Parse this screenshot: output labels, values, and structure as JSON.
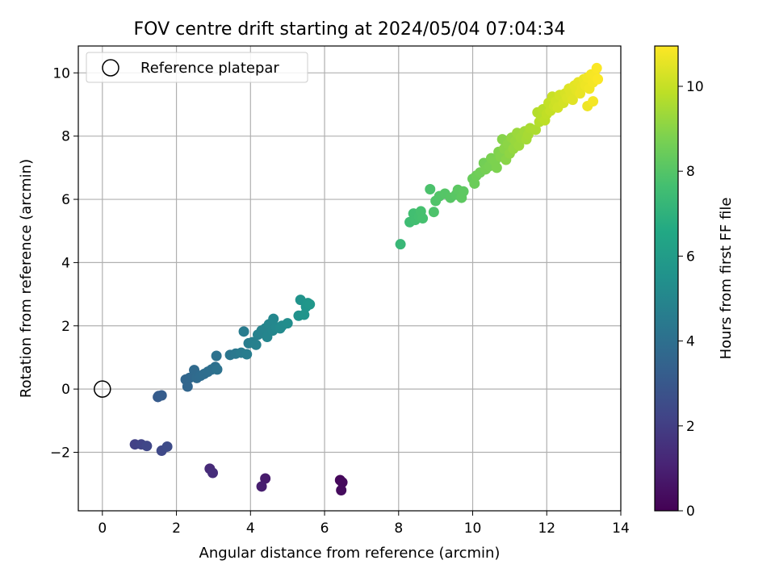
{
  "chart_data": {
    "type": "scatter",
    "title": "FOV centre drift starting at 2024/05/04 07:04:34",
    "xlabel": "Angular distance from reference (arcmin)",
    "ylabel": "Rotation from reference (arcmin)",
    "xlim": [
      -0.65,
      14.0
    ],
    "ylim": [
      -3.85,
      10.85
    ],
    "xticks": [
      0,
      2,
      4,
      6,
      8,
      10,
      12,
      14
    ],
    "yticks": [
      -2,
      0,
      2,
      4,
      6,
      8,
      10
    ],
    "grid": true,
    "legend": {
      "position": "top-left",
      "entries": [
        "Reference platepar"
      ]
    },
    "reference_point": {
      "x": 0,
      "y": 0
    },
    "colorbar": {
      "label": "Hours from first FF file",
      "colormap": "viridis",
      "range": [
        0,
        10.95
      ],
      "ticks": [
        0,
        2,
        4,
        6,
        8,
        10
      ]
    },
    "points": [
      {
        "x": 6.42,
        "y": -2.88,
        "c": 0.2
      },
      {
        "x": 6.48,
        "y": -2.95,
        "c": 0.25
      },
      {
        "x": 6.45,
        "y": -3.2,
        "c": 0.3
      },
      {
        "x": 4.4,
        "y": -2.83,
        "c": 0.8
      },
      {
        "x": 4.3,
        "y": -3.08,
        "c": 0.9
      },
      {
        "x": 2.9,
        "y": -2.52,
        "c": 1.3
      },
      {
        "x": 2.98,
        "y": -2.65,
        "c": 1.4
      },
      {
        "x": 0.88,
        "y": -1.75,
        "c": 2.1
      },
      {
        "x": 1.05,
        "y": -1.75,
        "c": 2.2
      },
      {
        "x": 1.2,
        "y": -1.8,
        "c": 2.3
      },
      {
        "x": 1.6,
        "y": -1.95,
        "c": 2.4
      },
      {
        "x": 1.75,
        "y": -1.82,
        "c": 2.5
      },
      {
        "x": 1.5,
        "y": -0.25,
        "c": 3.1
      },
      {
        "x": 1.52,
        "y": -0.22,
        "c": 3.15
      },
      {
        "x": 1.6,
        "y": -0.2,
        "c": 3.2
      },
      {
        "x": 2.25,
        "y": 0.3,
        "c": 3.6
      },
      {
        "x": 2.3,
        "y": 0.08,
        "c": 3.6
      },
      {
        "x": 2.35,
        "y": 0.35,
        "c": 3.65
      },
      {
        "x": 2.45,
        "y": 0.4,
        "c": 3.7
      },
      {
        "x": 2.48,
        "y": 0.6,
        "c": 3.75
      },
      {
        "x": 2.55,
        "y": 0.35,
        "c": 3.8
      },
      {
        "x": 2.65,
        "y": 0.42,
        "c": 3.85
      },
      {
        "x": 2.75,
        "y": 0.48,
        "c": 3.9
      },
      {
        "x": 2.85,
        "y": 0.55,
        "c": 3.95
      },
      {
        "x": 2.95,
        "y": 0.62,
        "c": 4.0
      },
      {
        "x": 3.05,
        "y": 0.7,
        "c": 4.05
      },
      {
        "x": 3.08,
        "y": 1.05,
        "c": 4.1
      },
      {
        "x": 3.1,
        "y": 0.62,
        "c": 4.1
      },
      {
        "x": 3.45,
        "y": 1.08,
        "c": 4.3
      },
      {
        "x": 3.6,
        "y": 1.12,
        "c": 4.4
      },
      {
        "x": 3.75,
        "y": 1.15,
        "c": 4.5
      },
      {
        "x": 3.82,
        "y": 1.82,
        "c": 4.55
      },
      {
        "x": 3.9,
        "y": 1.1,
        "c": 4.6
      },
      {
        "x": 3.95,
        "y": 1.45,
        "c": 4.6
      },
      {
        "x": 4.05,
        "y": 1.48,
        "c": 4.7
      },
      {
        "x": 4.15,
        "y": 1.4,
        "c": 4.75
      },
      {
        "x": 4.2,
        "y": 1.72,
        "c": 4.8
      },
      {
        "x": 4.3,
        "y": 1.85,
        "c": 4.85
      },
      {
        "x": 4.4,
        "y": 1.92,
        "c": 4.9
      },
      {
        "x": 4.45,
        "y": 1.65,
        "c": 4.95
      },
      {
        "x": 4.5,
        "y": 2.05,
        "c": 5.0
      },
      {
        "x": 4.6,
        "y": 1.85,
        "c": 5.0
      },
      {
        "x": 4.62,
        "y": 2.22,
        "c": 5.05
      },
      {
        "x": 4.7,
        "y": 1.95,
        "c": 5.1
      },
      {
        "x": 4.8,
        "y": 1.92,
        "c": 5.15
      },
      {
        "x": 4.85,
        "y": 2.0,
        "c": 5.2
      },
      {
        "x": 5.0,
        "y": 2.08,
        "c": 5.3
      },
      {
        "x": 5.3,
        "y": 2.32,
        "c": 5.5
      },
      {
        "x": 5.35,
        "y": 2.82,
        "c": 5.55
      },
      {
        "x": 5.45,
        "y": 2.35,
        "c": 5.6
      },
      {
        "x": 5.5,
        "y": 2.6,
        "c": 5.65
      },
      {
        "x": 5.55,
        "y": 2.72,
        "c": 5.7
      },
      {
        "x": 5.6,
        "y": 2.68,
        "c": 5.75
      },
      {
        "x": 8.05,
        "y": 4.58,
        "c": 7.3
      },
      {
        "x": 8.3,
        "y": 5.28,
        "c": 7.5
      },
      {
        "x": 8.4,
        "y": 5.55,
        "c": 7.6
      },
      {
        "x": 8.45,
        "y": 5.35,
        "c": 7.6
      },
      {
        "x": 8.55,
        "y": 5.45,
        "c": 7.65
      },
      {
        "x": 8.6,
        "y": 5.62,
        "c": 7.7
      },
      {
        "x": 8.65,
        "y": 5.4,
        "c": 7.7
      },
      {
        "x": 8.85,
        "y": 6.32,
        "c": 7.8
      },
      {
        "x": 8.95,
        "y": 5.6,
        "c": 7.85
      },
      {
        "x": 9.0,
        "y": 5.95,
        "c": 7.9
      },
      {
        "x": 9.1,
        "y": 6.1,
        "c": 7.95
      },
      {
        "x": 9.25,
        "y": 6.18,
        "c": 8.0
      },
      {
        "x": 9.4,
        "y": 6.05,
        "c": 8.05
      },
      {
        "x": 9.55,
        "y": 6.15,
        "c": 8.1
      },
      {
        "x": 9.6,
        "y": 6.3,
        "c": 8.15
      },
      {
        "x": 9.7,
        "y": 6.05,
        "c": 8.2
      },
      {
        "x": 9.75,
        "y": 6.25,
        "c": 8.2
      },
      {
        "x": 10.0,
        "y": 6.65,
        "c": 8.4
      },
      {
        "x": 10.05,
        "y": 6.5,
        "c": 8.45
      },
      {
        "x": 10.1,
        "y": 6.75,
        "c": 8.5
      },
      {
        "x": 10.2,
        "y": 6.85,
        "c": 8.55
      },
      {
        "x": 10.3,
        "y": 7.15,
        "c": 8.6
      },
      {
        "x": 10.35,
        "y": 6.95,
        "c": 8.65
      },
      {
        "x": 10.45,
        "y": 7.05,
        "c": 8.7
      },
      {
        "x": 10.5,
        "y": 7.3,
        "c": 8.75
      },
      {
        "x": 10.6,
        "y": 7.2,
        "c": 8.8
      },
      {
        "x": 10.65,
        "y": 7.0,
        "c": 8.8
      },
      {
        "x": 10.7,
        "y": 7.5,
        "c": 8.85
      },
      {
        "x": 10.75,
        "y": 7.35,
        "c": 8.9
      },
      {
        "x": 10.8,
        "y": 7.9,
        "c": 8.95
      },
      {
        "x": 10.85,
        "y": 7.6,
        "c": 9.0
      },
      {
        "x": 10.9,
        "y": 7.25,
        "c": 9.0
      },
      {
        "x": 10.95,
        "y": 7.75,
        "c": 9.05
      },
      {
        "x": 11.0,
        "y": 7.45,
        "c": 9.1
      },
      {
        "x": 11.05,
        "y": 7.95,
        "c": 9.15
      },
      {
        "x": 11.1,
        "y": 7.6,
        "c": 9.2
      },
      {
        "x": 11.15,
        "y": 7.85,
        "c": 9.25
      },
      {
        "x": 11.2,
        "y": 8.1,
        "c": 9.3
      },
      {
        "x": 11.25,
        "y": 7.7,
        "c": 9.3
      },
      {
        "x": 11.3,
        "y": 7.95,
        "c": 9.35
      },
      {
        "x": 11.4,
        "y": 8.15,
        "c": 9.4
      },
      {
        "x": 11.45,
        "y": 7.9,
        "c": 9.45
      },
      {
        "x": 11.5,
        "y": 8.05,
        "c": 9.5
      },
      {
        "x": 11.55,
        "y": 8.25,
        "c": 9.55
      },
      {
        "x": 11.7,
        "y": 8.2,
        "c": 9.6
      },
      {
        "x": 11.75,
        "y": 8.75,
        "c": 9.7
      },
      {
        "x": 11.8,
        "y": 8.45,
        "c": 9.7
      },
      {
        "x": 11.85,
        "y": 8.6,
        "c": 9.75
      },
      {
        "x": 11.9,
        "y": 8.85,
        "c": 9.8
      },
      {
        "x": 11.95,
        "y": 8.5,
        "c": 9.85
      },
      {
        "x": 12.0,
        "y": 8.7,
        "c": 9.9
      },
      {
        "x": 12.05,
        "y": 9.05,
        "c": 9.95
      },
      {
        "x": 12.1,
        "y": 8.8,
        "c": 10.0
      },
      {
        "x": 12.15,
        "y": 9.25,
        "c": 10.05
      },
      {
        "x": 12.2,
        "y": 8.95,
        "c": 10.1
      },
      {
        "x": 12.25,
        "y": 9.1,
        "c": 10.15
      },
      {
        "x": 12.3,
        "y": 8.9,
        "c": 10.2
      },
      {
        "x": 12.35,
        "y": 9.3,
        "c": 10.2
      },
      {
        "x": 12.45,
        "y": 9.05,
        "c": 10.25
      },
      {
        "x": 12.5,
        "y": 9.35,
        "c": 10.3
      },
      {
        "x": 12.55,
        "y": 9.2,
        "c": 10.35
      },
      {
        "x": 12.6,
        "y": 9.5,
        "c": 10.4
      },
      {
        "x": 12.65,
        "y": 9.3,
        "c": 10.4
      },
      {
        "x": 12.7,
        "y": 9.15,
        "c": 10.45
      },
      {
        "x": 12.75,
        "y": 9.6,
        "c": 10.5
      },
      {
        "x": 12.8,
        "y": 9.45,
        "c": 10.5
      },
      {
        "x": 12.85,
        "y": 9.7,
        "c": 10.55
      },
      {
        "x": 12.9,
        "y": 9.35,
        "c": 10.6
      },
      {
        "x": 12.95,
        "y": 9.55,
        "c": 10.6
      },
      {
        "x": 13.0,
        "y": 9.8,
        "c": 10.65
      },
      {
        "x": 13.05,
        "y": 9.6,
        "c": 10.7
      },
      {
        "x": 13.1,
        "y": 8.95,
        "c": 10.7
      },
      {
        "x": 13.1,
        "y": 9.85,
        "c": 10.75
      },
      {
        "x": 13.15,
        "y": 9.5,
        "c": 10.75
      },
      {
        "x": 13.2,
        "y": 9.95,
        "c": 10.8
      },
      {
        "x": 13.25,
        "y": 9.7,
        "c": 10.8
      },
      {
        "x": 13.25,
        "y": 9.1,
        "c": 10.8
      },
      {
        "x": 13.3,
        "y": 9.9,
        "c": 10.85
      },
      {
        "x": 13.35,
        "y": 10.15,
        "c": 10.9
      },
      {
        "x": 13.38,
        "y": 9.8,
        "c": 10.9
      }
    ]
  }
}
